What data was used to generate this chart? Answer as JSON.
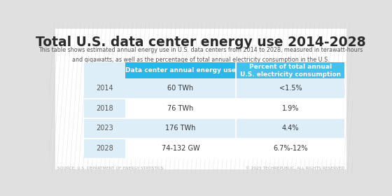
{
  "title": "Total U.S. data center energy use 2014-2028",
  "subtitle": "This table shows estimated annual energy use in U.S. data centers from 2014 to 2028, measured in terawatt-hours\nand gigawatts, as well as the percentage of total annual electricity consumption in the U.S.",
  "col_headers": [
    "Data center annual energy use",
    "Percent of total annual\nU.S. electricity consumption"
  ],
  "rows": [
    [
      "2014",
      "60 TWh",
      "<1.5%"
    ],
    [
      "2018",
      "76 TWh",
      "1.9%"
    ],
    [
      "2023",
      "176 TWh",
      "4.4%"
    ],
    [
      "2028",
      "74-132 GW",
      "6.7%-12%"
    ]
  ],
  "header_bg": "#29b6e8",
  "header_text": "#ffffff",
  "row_bg_light": "#deeef8",
  "row_bg_white": "#ffffff",
  "card_bg": "#ffffff",
  "outer_bg": "#e0e0e0",
  "title_color": "#2b2b2b",
  "subtitle_color": "#555555",
  "row_text_color": "#333333",
  "year_text_color": "#555555",
  "footer_left": "SOURCE: U.S. DEPARTMENT OF ENERGY STATISTICS",
  "footer_right": "© 2025 TECHREPUBLIC, ALL RIGHTS RESERVED",
  "title_fontsize": 13.5,
  "subtitle_fontsize": 5.8,
  "header_fontsize": 6.5,
  "row_fontsize": 7.0,
  "year_fontsize": 7.0,
  "footer_fontsize": 4.2
}
